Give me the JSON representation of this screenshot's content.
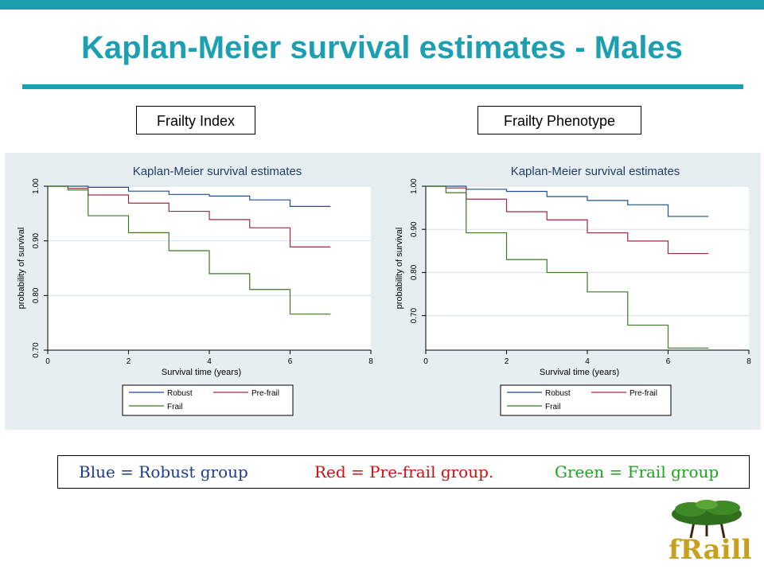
{
  "slide": {
    "title": "Kaplan-Meier survival estimates - Males",
    "accent_color": "#1c9fb0"
  },
  "panels": {
    "left_label": "Frailty Index",
    "right_label": "Frailty Phenotype"
  },
  "caption": {
    "blue": "Blue = Robust group",
    "red": "Red = Pre-frail group.",
    "green": "Green = Frail group",
    "blue_color": "#1f3c8c",
    "red_color": "#d01010",
    "green_color": "#1aa41a"
  },
  "logo": {
    "text": "fRaill",
    "icon": "tree-icon"
  },
  "chart_data": [
    {
      "type": "line",
      "step": true,
      "title": "Kaplan-Meier survival estimates",
      "xlabel": "Survival time (years)",
      "ylabel": "probability of survival",
      "xlim": [
        0,
        8
      ],
      "ylim": [
        0.7,
        1.0
      ],
      "x_ticks": [
        "0",
        "2",
        "4",
        "6",
        "8"
      ],
      "y_ticks": [
        "0.70",
        "0.80",
        "0.90",
        "1.00"
      ],
      "grid": true,
      "legend_position": "bottom",
      "series": [
        {
          "name": "Robust",
          "color": "#1f4e8c",
          "points": [
            [
              0,
              1.0
            ],
            [
              1,
              0.998
            ],
            [
              2,
              0.991
            ],
            [
              3,
              0.985
            ],
            [
              4,
              0.982
            ],
            [
              5,
              0.975
            ],
            [
              6,
              0.963
            ],
            [
              7,
              0.963
            ]
          ]
        },
        {
          "name": "Pre-frail",
          "color": "#a02840",
          "points": [
            [
              0,
              1.0
            ],
            [
              0.5,
              0.996
            ],
            [
              1,
              0.984
            ],
            [
              2,
              0.969
            ],
            [
              3,
              0.954
            ],
            [
              4,
              0.939
            ],
            [
              5,
              0.924
            ],
            [
              6,
              0.889
            ],
            [
              7,
              0.889
            ]
          ]
        },
        {
          "name": "Frail",
          "color": "#3c7828",
          "points": [
            [
              0,
              1.0
            ],
            [
              0.5,
              0.993
            ],
            [
              1,
              0.946
            ],
            [
              2,
              0.915
            ],
            [
              3,
              0.882
            ],
            [
              4,
              0.84
            ],
            [
              5,
              0.811
            ],
            [
              6,
              0.766
            ],
            [
              7,
              0.766
            ]
          ]
        }
      ]
    },
    {
      "type": "line",
      "step": true,
      "title": "Kaplan-Meier survival estimates",
      "xlabel": "Survival time (years)",
      "ylabel": "probability of survival",
      "xlim": [
        0,
        8
      ],
      "ylim": [
        0.62,
        1.0
      ],
      "x_ticks": [
        "0",
        "2",
        "4",
        "6",
        "8"
      ],
      "y_ticks": [
        "0.70",
        "0.80",
        "0.90",
        "1.00"
      ],
      "grid": true,
      "legend_position": "bottom",
      "series": [
        {
          "name": "Robust",
          "color": "#1f4e8c",
          "points": [
            [
              0,
              1.0
            ],
            [
              1,
              0.993
            ],
            [
              2,
              0.988
            ],
            [
              3,
              0.976
            ],
            [
              4,
              0.967
            ],
            [
              5,
              0.957
            ],
            [
              6,
              0.93
            ],
            [
              7,
              0.93
            ]
          ]
        },
        {
          "name": "Pre-frail",
          "color": "#a02840",
          "points": [
            [
              0,
              1.0
            ],
            [
              0.5,
              0.996
            ],
            [
              1,
              0.97
            ],
            [
              2,
              0.941
            ],
            [
              3,
              0.922
            ],
            [
              4,
              0.892
            ],
            [
              5,
              0.873
            ],
            [
              6,
              0.844
            ],
            [
              7,
              0.844
            ]
          ]
        },
        {
          "name": "Frail",
          "color": "#3c7828",
          "points": [
            [
              0,
              1.0
            ],
            [
              0.5,
              0.985
            ],
            [
              1,
              0.892
            ],
            [
              2,
              0.83
            ],
            [
              3,
              0.8
            ],
            [
              4,
              0.755
            ],
            [
              5,
              0.678
            ],
            [
              6,
              0.625
            ],
            [
              7,
              0.625
            ]
          ]
        }
      ]
    }
  ]
}
